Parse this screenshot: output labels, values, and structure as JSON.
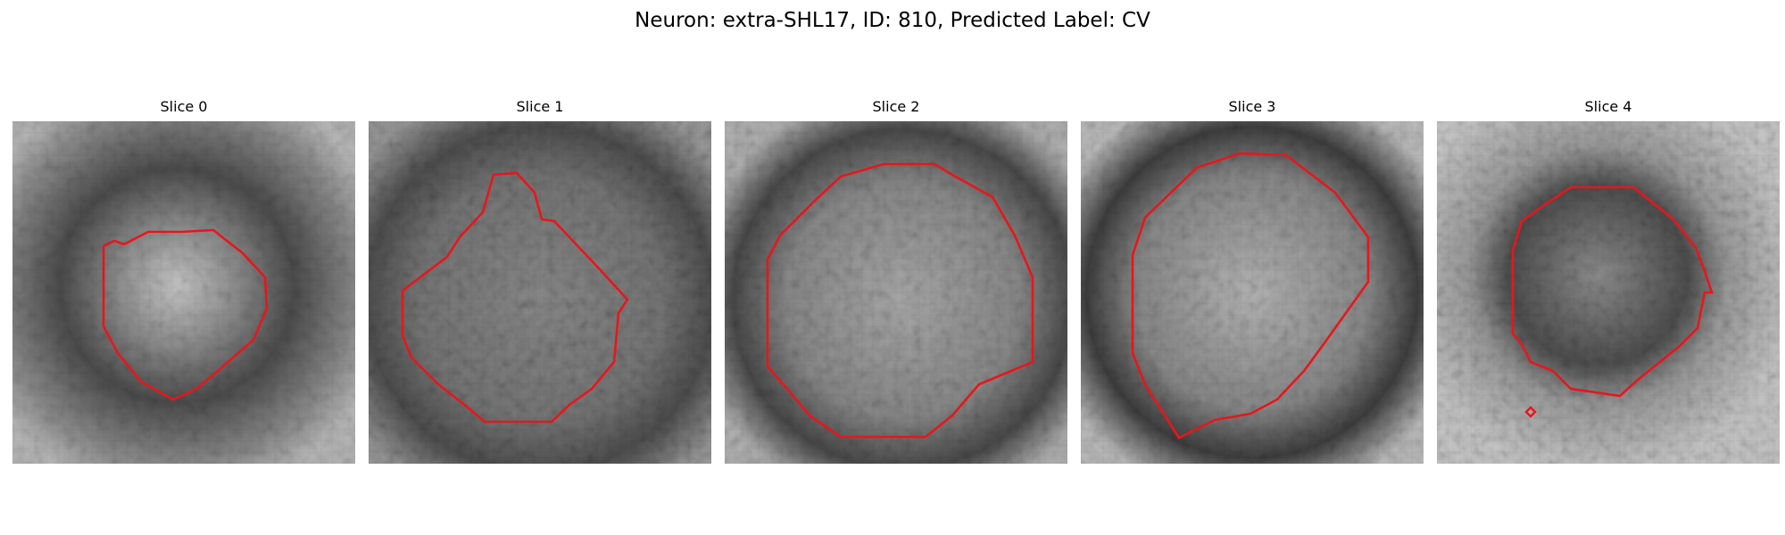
{
  "figure": {
    "title": "Neuron: extra-SHL17, ID: 810, Predicted Label: CV"
  },
  "colors": {
    "contour": "#e8161b",
    "background": "#ffffff"
  },
  "panels": [
    {
      "title": "Slice 0"
    },
    {
      "title": "Slice 1"
    },
    {
      "title": "Slice 2"
    },
    {
      "title": "Slice 3"
    },
    {
      "title": "Slice 4"
    }
  ]
}
